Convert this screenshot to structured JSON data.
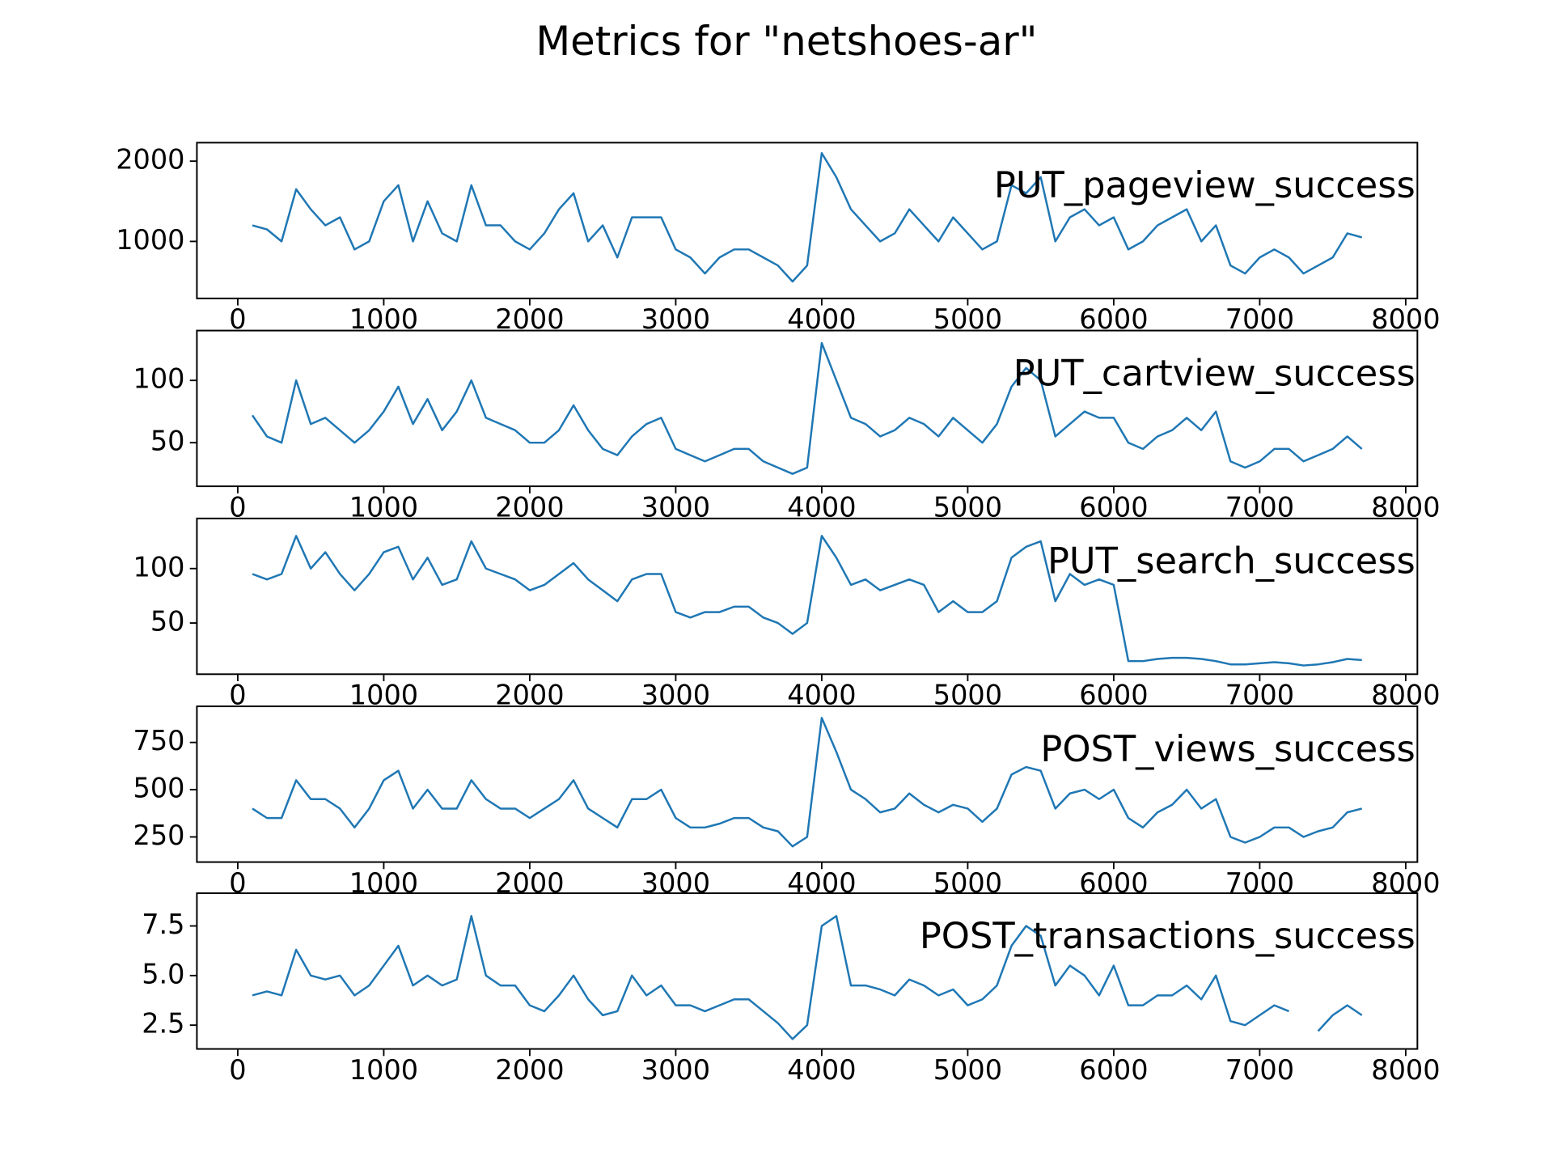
{
  "title": "Metrics for \"netshoes-ar\"",
  "chart_data": [
    {
      "type": "line",
      "annotation": "PUT_pageview_success",
      "color": "#1f77b4",
      "xlim": [
        -280,
        8080
      ],
      "xticks": [
        0,
        1000,
        2000,
        3000,
        4000,
        5000,
        6000,
        7000,
        8000
      ],
      "ylim": [
        290,
        2230
      ],
      "yticks": [
        1000,
        2000
      ],
      "x": [
        100,
        200,
        300,
        400,
        500,
        600,
        700,
        800,
        900,
        1000,
        1100,
        1200,
        1300,
        1400,
        1500,
        1600,
        1700,
        1800,
        1900,
        2000,
        2100,
        2200,
        2300,
        2400,
        2500,
        2600,
        2700,
        2800,
        2900,
        3000,
        3100,
        3200,
        3300,
        3400,
        3500,
        3600,
        3700,
        3800,
        3900,
        4000,
        4100,
        4200,
        4300,
        4400,
        4500,
        4600,
        4700,
        4800,
        4900,
        5000,
        5100,
        5200,
        5300,
        5400,
        5500,
        5600,
        5700,
        5800,
        5900,
        6000,
        6100,
        6200,
        6300,
        6400,
        6500,
        6600,
        6700,
        6800,
        6900,
        7000,
        7100,
        7200,
        7300,
        7400,
        7500,
        7600,
        7700
      ],
      "values": [
        1200,
        1150,
        1000,
        1650,
        1400,
        1200,
        1300,
        900,
        1000,
        1500,
        1700,
        1000,
        1500,
        1100,
        1000,
        1700,
        1200,
        1200,
        1000,
        900,
        1100,
        1400,
        1600,
        1000,
        1200,
        800,
        1300,
        1300,
        1300,
        900,
        800,
        600,
        800,
        900,
        900,
        800,
        700,
        500,
        700,
        2100,
        1800,
        1400,
        1200,
        1000,
        1100,
        1400,
        1200,
        1000,
        1300,
        1100,
        900,
        1000,
        1700,
        1600,
        1800,
        1000,
        1300,
        1400,
        1200,
        1300,
        900,
        1000,
        1200,
        1300,
        1400,
        1000,
        1200,
        700,
        600,
        800,
        900,
        800,
        600,
        700,
        800,
        1100,
        1050
      ]
    },
    {
      "type": "line",
      "annotation": "PUT_cartview_success",
      "color": "#1f77b4",
      "xlim": [
        -280,
        8080
      ],
      "xticks": [
        0,
        1000,
        2000,
        3000,
        4000,
        5000,
        6000,
        7000,
        8000
      ],
      "ylim": [
        15,
        140
      ],
      "yticks": [
        50,
        100
      ],
      "x": [
        100,
        200,
        300,
        400,
        500,
        600,
        700,
        800,
        900,
        1000,
        1100,
        1200,
        1300,
        1400,
        1500,
        1600,
        1700,
        1800,
        1900,
        2000,
        2100,
        2200,
        2300,
        2400,
        2500,
        2600,
        2700,
        2800,
        2900,
        3000,
        3100,
        3200,
        3300,
        3400,
        3500,
        3600,
        3700,
        3800,
        3900,
        4000,
        4100,
        4200,
        4300,
        4400,
        4500,
        4600,
        4700,
        4800,
        4900,
        5000,
        5100,
        5200,
        5300,
        5400,
        5500,
        5600,
        5700,
        5800,
        5900,
        6000,
        6100,
        6200,
        6300,
        6400,
        6500,
        6600,
        6700,
        6800,
        6900,
        7000,
        7100,
        7200,
        7300,
        7400,
        7500,
        7600,
        7700
      ],
      "values": [
        72,
        55,
        50,
        100,
        65,
        70,
        60,
        50,
        60,
        75,
        95,
        65,
        85,
        60,
        75,
        100,
        70,
        65,
        60,
        50,
        50,
        60,
        80,
        60,
        45,
        40,
        55,
        65,
        70,
        45,
        40,
        35,
        40,
        45,
        45,
        35,
        30,
        25,
        30,
        130,
        100,
        70,
        65,
        55,
        60,
        70,
        65,
        55,
        70,
        60,
        50,
        65,
        95,
        110,
        100,
        55,
        65,
        75,
        70,
        70,
        50,
        45,
        55,
        60,
        70,
        60,
        75,
        35,
        30,
        35,
        45,
        45,
        35,
        40,
        45,
        55,
        45
      ]
    },
    {
      "type": "line",
      "annotation": "PUT_search_success",
      "color": "#1f77b4",
      "xlim": [
        -280,
        8080
      ],
      "xticks": [
        0,
        1000,
        2000,
        3000,
        4000,
        5000,
        6000,
        7000,
        8000
      ],
      "ylim": [
        3,
        146
      ],
      "yticks": [
        50,
        100
      ],
      "x": [
        100,
        200,
        300,
        400,
        500,
        600,
        700,
        800,
        900,
        1000,
        1100,
        1200,
        1300,
        1400,
        1500,
        1600,
        1700,
        1800,
        1900,
        2000,
        2100,
        2200,
        2300,
        2400,
        2500,
        2600,
        2700,
        2800,
        2900,
        3000,
        3100,
        3200,
        3300,
        3400,
        3500,
        3600,
        3700,
        3800,
        3900,
        4000,
        4100,
        4200,
        4300,
        4400,
        4500,
        4600,
        4700,
        4800,
        4900,
        5000,
        5100,
        5200,
        5300,
        5400,
        5500,
        5600,
        5700,
        5800,
        5900,
        6000,
        6100,
        6200,
        6300,
        6400,
        6500,
        6600,
        6700,
        6800,
        6900,
        7000,
        7100,
        7200,
        7300,
        7400,
        7500,
        7600,
        7700
      ],
      "values": [
        95,
        90,
        95,
        130,
        100,
        115,
        95,
        80,
        95,
        115,
        120,
        90,
        110,
        85,
        90,
        125,
        100,
        95,
        90,
        80,
        85,
        95,
        105,
        90,
        80,
        70,
        90,
        95,
        95,
        60,
        55,
        60,
        60,
        65,
        65,
        55,
        50,
        40,
        50,
        130,
        110,
        85,
        90,
        80,
        85,
        90,
        85,
        60,
        70,
        60,
        60,
        70,
        110,
        120,
        125,
        70,
        95,
        85,
        90,
        85,
        15,
        15,
        17,
        18,
        18,
        17,
        15,
        12,
        12,
        13,
        14,
        13,
        11,
        12,
        14,
        17,
        16
      ]
    },
    {
      "type": "line",
      "annotation": "POST_views_success",
      "color": "#1f77b4",
      "xlim": [
        -280,
        8080
      ],
      "xticks": [
        0,
        1000,
        2000,
        3000,
        4000,
        5000,
        6000,
        7000,
        8000
      ],
      "ylim": [
        117,
        941
      ],
      "yticks": [
        250,
        500,
        750
      ],
      "x": [
        100,
        200,
        300,
        400,
        500,
        600,
        700,
        800,
        900,
        1000,
        1100,
        1200,
        1300,
        1400,
        1500,
        1600,
        1700,
        1800,
        1900,
        2000,
        2100,
        2200,
        2300,
        2400,
        2500,
        2600,
        2700,
        2800,
        2900,
        3000,
        3100,
        3200,
        3300,
        3400,
        3500,
        3600,
        3700,
        3800,
        3900,
        4000,
        4100,
        4200,
        4300,
        4400,
        4500,
        4600,
        4700,
        4800,
        4900,
        5000,
        5100,
        5200,
        5300,
        5400,
        5500,
        5600,
        5700,
        5800,
        5900,
        6000,
        6100,
        6200,
        6300,
        6400,
        6500,
        6600,
        6700,
        6800,
        6900,
        7000,
        7100,
        7200,
        7300,
        7400,
        7500,
        7600,
        7700
      ],
      "values": [
        400,
        350,
        350,
        550,
        450,
        450,
        400,
        300,
        400,
        550,
        600,
        400,
        500,
        400,
        400,
        550,
        450,
        400,
        400,
        350,
        400,
        450,
        550,
        400,
        350,
        300,
        450,
        450,
        500,
        350,
        300,
        300,
        320,
        350,
        350,
        300,
        280,
        200,
        250,
        880,
        700,
        500,
        450,
        380,
        400,
        480,
        420,
        380,
        420,
        400,
        330,
        400,
        580,
        620,
        600,
        400,
        480,
        500,
        450,
        500,
        350,
        300,
        380,
        420,
        500,
        400,
        450,
        250,
        220,
        250,
        300,
        300,
        250,
        280,
        300,
        380,
        400
      ]
    },
    {
      "type": "line",
      "annotation": "POST_transactions_success",
      "color": "#1f77b4",
      "xlim": [
        -280,
        8080
      ],
      "xticks": [
        0,
        1000,
        2000,
        3000,
        4000,
        5000,
        6000,
        7000,
        8000
      ],
      "ylim": [
        1.3,
        9.15
      ],
      "yticks": [
        2.5,
        {
          "value": 5,
          "label": "5.0"
        },
        7.5
      ],
      "x": [
        100,
        200,
        300,
        400,
        500,
        600,
        700,
        800,
        900,
        1000,
        1100,
        1200,
        1300,
        1400,
        1500,
        1600,
        1700,
        1800,
        1900,
        2000,
        2100,
        2200,
        2300,
        2400,
        2500,
        2600,
        2700,
        2800,
        2900,
        3000,
        3100,
        3200,
        3300,
        3400,
        3500,
        3600,
        3700,
        3800,
        3900,
        4000,
        4100,
        4200,
        4300,
        4400,
        4500,
        4600,
        4700,
        4800,
        4900,
        5000,
        5100,
        5200,
        5300,
        5400,
        5500,
        5600,
        5700,
        5800,
        5900,
        6000,
        6100,
        6200,
        6300,
        6400,
        6500,
        6600,
        6700,
        6800,
        6900,
        7000,
        7100,
        7200,
        7300,
        7400,
        7500,
        7600,
        7700
      ],
      "values": [
        4.0,
        4.2,
        4.0,
        6.3,
        5.0,
        4.8,
        5.0,
        4.0,
        4.5,
        5.5,
        6.5,
        4.5,
        5.0,
        4.5,
        4.8,
        8.0,
        5.0,
        4.5,
        4.5,
        3.5,
        3.2,
        4.0,
        5.0,
        3.8,
        3.0,
        3.2,
        5.0,
        4.0,
        4.5,
        3.5,
        3.5,
        3.2,
        3.5,
        3.8,
        3.8,
        3.2,
        2.6,
        1.8,
        2.5,
        7.5,
        8.0,
        4.5,
        4.5,
        4.3,
        4.0,
        4.8,
        4.5,
        4.0,
        4.3,
        3.5,
        3.8,
        4.5,
        6.5,
        7.5,
        7.0,
        4.5,
        5.5,
        5.0,
        4.0,
        5.5,
        3.5,
        3.5,
        4.0,
        4.0,
        4.5,
        3.8,
        5.0,
        2.7,
        2.5,
        3.0,
        3.5,
        3.2,
        null,
        2.2,
        3.0,
        3.5,
        3.0
      ]
    }
  ]
}
